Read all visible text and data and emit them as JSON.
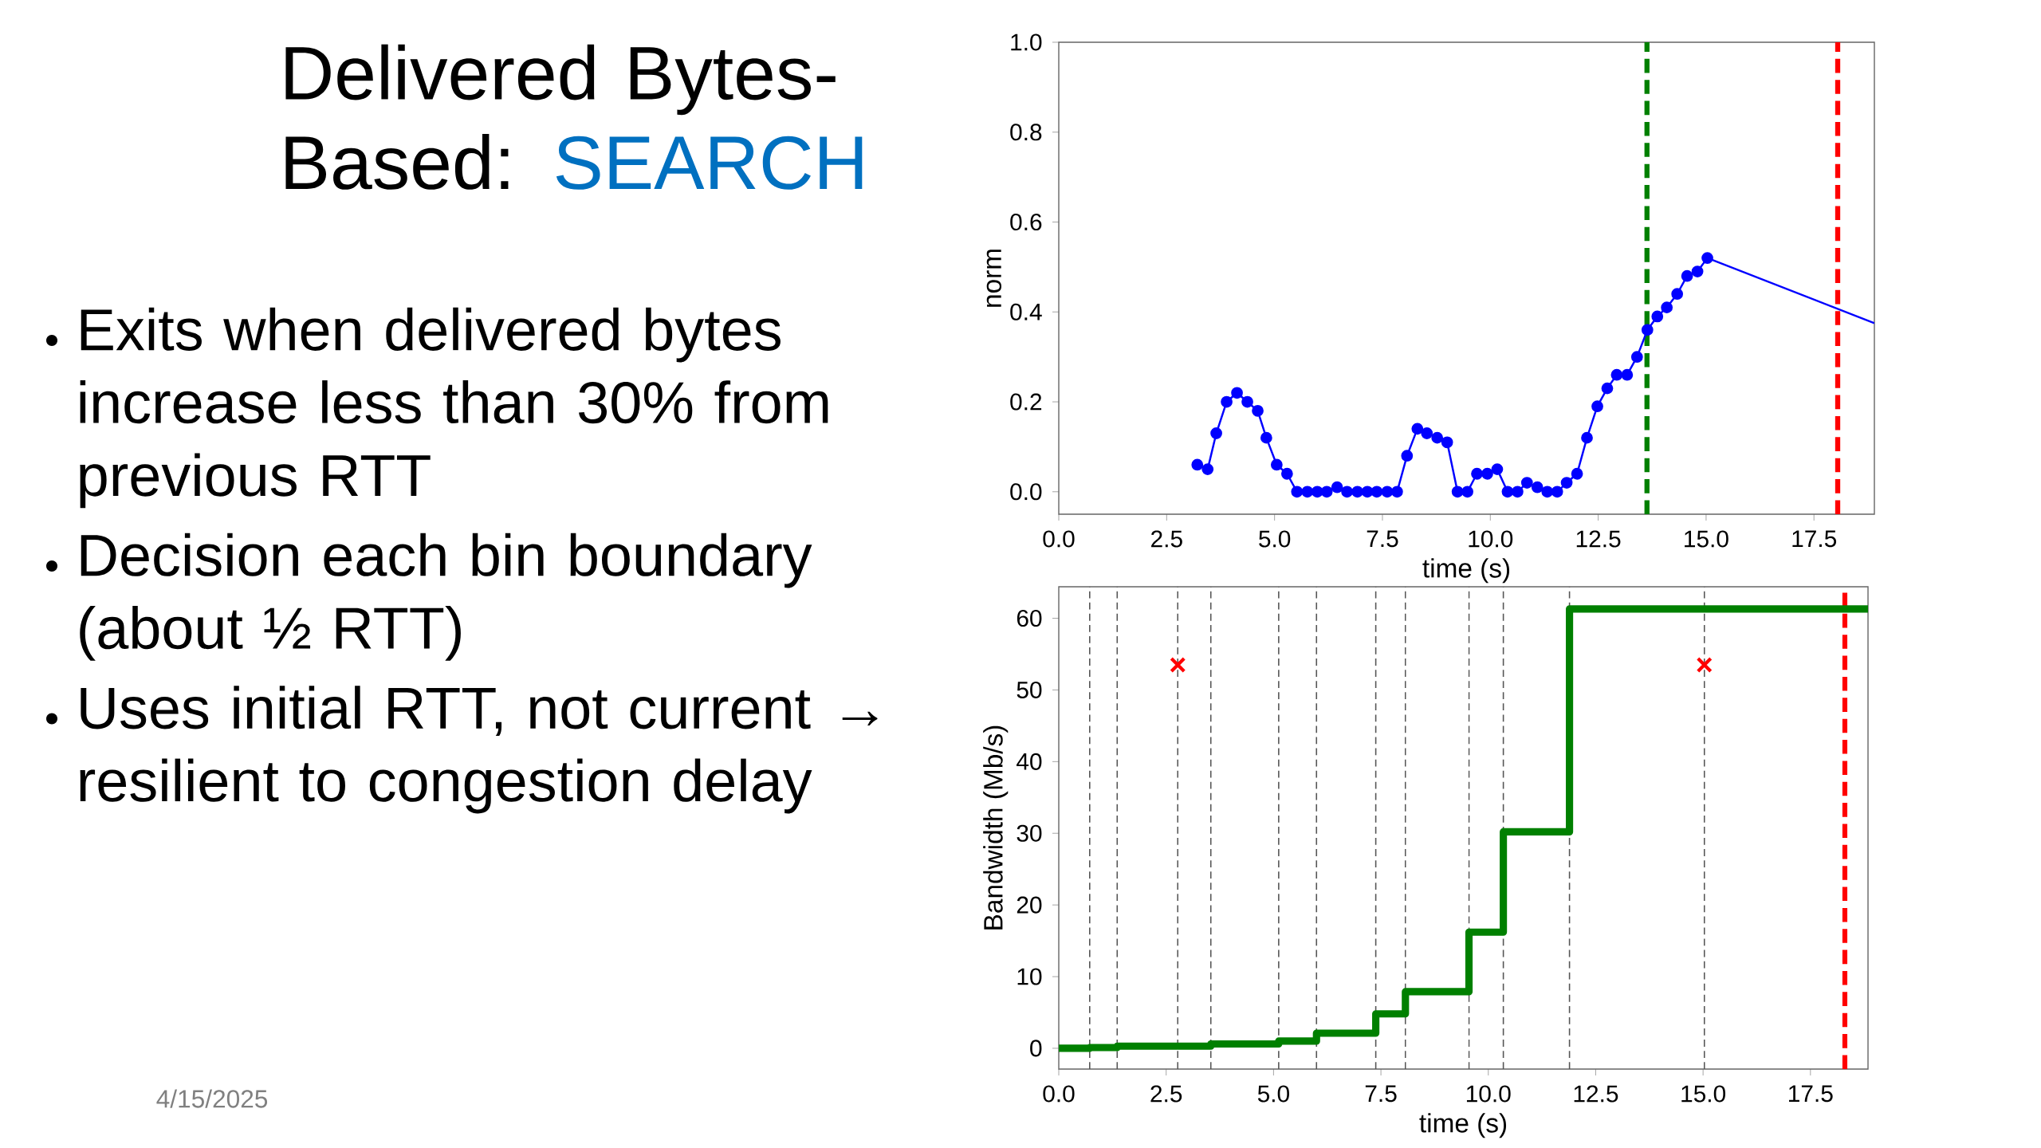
{
  "chart_data": [
    {
      "type": "other",
      "title": "Delivered Bytes-Based:",
      "subtitle": "SEARCH",
      "annotations": [
        "Exits when delivered bytes increase less than 30% from previous RTT",
        "Decision each bin boundary (about ½ RTT)",
        "Uses initial RTT, not current → resilient to congestion delay",
        "4/15/2025"
      ]
    },
    {
      "type": "line",
      "xlabel": "time (s)",
      "ylabel": "norm",
      "marker": "circle",
      "xlim": [
        0,
        18.9
      ],
      "ylim": [
        -0.05,
        1.0
      ],
      "xticks": [
        {
          "value": 0,
          "label": "0.0"
        },
        {
          "value": 2.5,
          "label": "2.5"
        },
        {
          "value": 5,
          "label": "5.0"
        },
        {
          "value": 7.5,
          "label": "7.5"
        },
        {
          "value": 10,
          "label": "10.0"
        },
        {
          "value": 12.5,
          "label": "12.5"
        },
        {
          "value": 15,
          "label": "15.0"
        },
        {
          "value": 17.5,
          "label": "17.5"
        }
      ],
      "yticks": [
        {
          "value": 0,
          "label": "0.0"
        },
        {
          "value": 0.2,
          "label": "0.2"
        },
        {
          "value": 0.4,
          "label": "0.4"
        },
        {
          "value": 0.6,
          "label": "0.6"
        },
        {
          "value": 0.8,
          "label": "0.8"
        },
        {
          "value": 1.0,
          "label": "1.0"
        }
      ],
      "series": [
        {
          "color": "#0000ff",
          "x": [
            3.21,
            3.45,
            3.65,
            3.89,
            4.13,
            4.37,
            4.61,
            4.81,
            5.05,
            5.29,
            5.52,
            5.76,
            5.99,
            6.21,
            6.45,
            6.68,
            6.92,
            7.15,
            7.37,
            7.61,
            7.84,
            8.07,
            8.31,
            8.53,
            8.77,
            9.0,
            9.24,
            9.47,
            9.69,
            9.93,
            10.16,
            10.4,
            10.63,
            10.85,
            11.09,
            11.32,
            11.55,
            11.77,
            12.01,
            12.24,
            12.48,
            12.71,
            12.93,
            13.17,
            13.4,
            13.64,
            13.87,
            14.09,
            14.33,
            14.56,
            14.8,
            15.03
          ],
          "values": [
            0.06,
            0.05,
            0.13,
            0.2,
            0.22,
            0.2,
            0.18,
            0.12,
            0.06,
            0.04,
            0,
            0,
            0,
            0,
            0.01,
            0,
            0,
            0,
            0,
            0,
            0,
            0.08,
            0.14,
            0.13,
            0.12,
            0.11,
            0,
            0,
            0.04,
            0.04,
            0.05,
            0,
            0,
            0.02,
            0.01,
            0,
            0,
            0.02,
            0.04,
            0.12,
            0.19,
            0.23,
            0.26,
            0.26,
            0.3,
            0.36,
            0.39,
            0.41,
            0.44,
            0.48,
            0.49,
            0.52
          ]
        },
        {
          "color": "#0000ff",
          "marker": "none",
          "x": [
            15.03,
            18.9
          ],
          "values": [
            0.52,
            0.375
          ]
        }
      ],
      "ref_lines": [
        {
          "axis": "x",
          "value": 13.63,
          "color": "#008000",
          "line_style": "dashed"
        },
        {
          "axis": "x",
          "value": 18.05,
          "color": "#ff0000",
          "line_style": "dashed"
        }
      ]
    },
    {
      "type": "step",
      "xlabel": "time (s)",
      "ylabel": "Bandwidth (Mb/s)",
      "xlim": [
        0,
        18.84
      ],
      "ylim": [
        -2.9,
        64.4
      ],
      "xticks": [
        {
          "value": 0,
          "label": "0.0"
        },
        {
          "value": 2.5,
          "label": "2.5"
        },
        {
          "value": 5,
          "label": "5.0"
        },
        {
          "value": 7.5,
          "label": "7.5"
        },
        {
          "value": 10,
          "label": "10.0"
        },
        {
          "value": 12.5,
          "label": "12.5"
        },
        {
          "value": 15,
          "label": "15.0"
        },
        {
          "value": 17.5,
          "label": "17.5"
        }
      ],
      "yticks": [
        0,
        10,
        20,
        30,
        40,
        50,
        60
      ],
      "series": [
        {
          "color": "#008000",
          "x": [
            0,
            0.72,
            1.36,
            3.54,
            5.12,
            6.0,
            7.38,
            8.07,
            9.55,
            10.35,
            11.89,
            18.84
          ],
          "values": [
            0,
            0.1,
            0.3,
            0.6,
            1.0,
            2.1,
            4.8,
            7.9,
            16.2,
            30.2,
            61.3,
            61.3
          ]
        },
        {
          "type": "scatter",
          "color": "#ff0000",
          "marker": "cross",
          "x": [
            2.77,
            15.03
          ],
          "values": [
            53.5,
            53.5
          ]
        }
      ],
      "ref_lines": [
        {
          "axis": "x",
          "value": 0.72,
          "color": "#555555",
          "line_style": "dashed"
        },
        {
          "axis": "x",
          "value": 1.36,
          "color": "#555555",
          "line_style": "dashed"
        },
        {
          "axis": "x",
          "value": 2.77,
          "color": "#555555",
          "line_style": "dashed"
        },
        {
          "axis": "x",
          "value": 3.54,
          "color": "#555555",
          "line_style": "dashed"
        },
        {
          "axis": "x",
          "value": 5.12,
          "color": "#555555",
          "line_style": "dashed"
        },
        {
          "axis": "x",
          "value": 6.0,
          "color": "#555555",
          "line_style": "dashed"
        },
        {
          "axis": "x",
          "value": 7.38,
          "color": "#555555",
          "line_style": "dashed"
        },
        {
          "axis": "x",
          "value": 8.07,
          "color": "#555555",
          "line_style": "dashed"
        },
        {
          "axis": "x",
          "value": 9.55,
          "color": "#555555",
          "line_style": "dashed"
        },
        {
          "axis": "x",
          "value": 10.35,
          "color": "#555555",
          "line_style": "dashed"
        },
        {
          "axis": "x",
          "value": 11.89,
          "color": "#555555",
          "line_style": "dashed"
        },
        {
          "axis": "x",
          "value": 15.03,
          "color": "#555555",
          "line_style": "dashed"
        },
        {
          "axis": "x",
          "value": 18.3,
          "color": "#ff0000",
          "line_style": "dashed"
        }
      ]
    }
  ]
}
